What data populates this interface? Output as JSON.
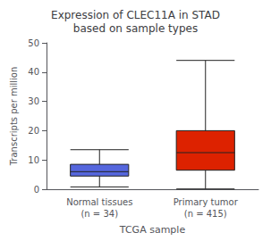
{
  "chart_data": {
    "type": "box",
    "title": "Expression of CLEC11A in STAD\nbased on sample types",
    "xlabel": "TCGA sample",
    "ylabel": "Transcripts per million",
    "categories": [
      "Normal tissues\n(n = 34)",
      "Primary tumor\n(n = 415)"
    ],
    "boxes": [
      {
        "whisker_low": 0.8,
        "q1": 4.5,
        "median": 6.0,
        "q3": 8.5,
        "whisker_high": 13.5
      },
      {
        "whisker_low": 0.1,
        "q1": 6.5,
        "median": 12.5,
        "q3": 20.0,
        "whisker_high": 44.0
      }
    ],
    "colors": [
      "#5566dd",
      "#dd2200"
    ],
    "ylim": [
      0,
      50
    ],
    "yticks": [
      0,
      10,
      20,
      30,
      40,
      50
    ],
    "grid": false
  }
}
